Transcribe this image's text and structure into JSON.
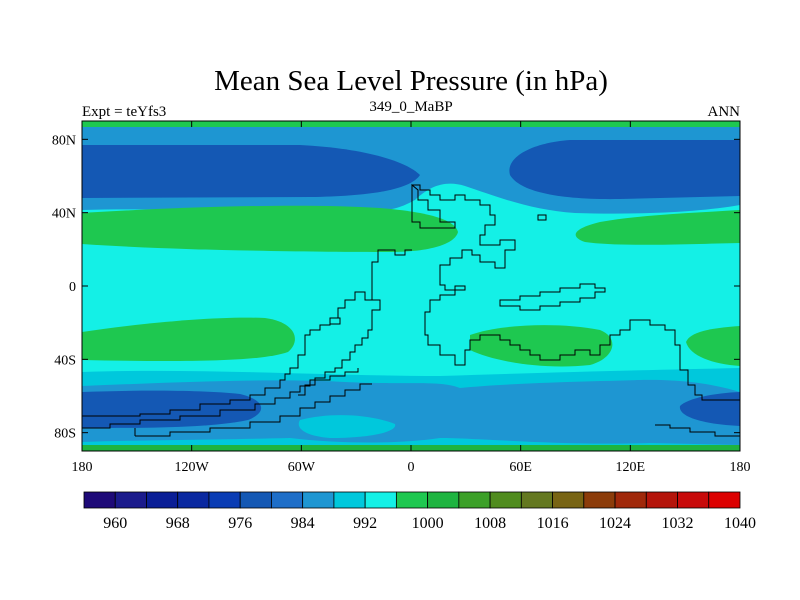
{
  "title": "Mean Sea Level Pressure (in hPa)",
  "left_label": "Expt = teYfs3",
  "center_label": "349_0_MaBP",
  "right_label": "ANN",
  "lat_ticks": [
    {
      "value": 80,
      "label": "80N"
    },
    {
      "value": 40,
      "label": "40N"
    },
    {
      "value": 0,
      "label": "0"
    },
    {
      "value": -40,
      "label": "40S"
    },
    {
      "value": -80,
      "label": "80S"
    }
  ],
  "lon_ticks": [
    {
      "value": -180,
      "label": "180"
    },
    {
      "value": -120,
      "label": "120W"
    },
    {
      "value": -60,
      "label": "60W"
    },
    {
      "value": 0,
      "label": "0"
    },
    {
      "value": 60,
      "label": "60E"
    },
    {
      "value": 120,
      "label": "120E"
    },
    {
      "value": 180,
      "label": "180"
    }
  ],
  "colorbar": {
    "colors": [
      "#1e0a78",
      "#1b1b8c",
      "#0a1e96",
      "#0a28a0",
      "#0a3cb4",
      "#1458b4",
      "#1e6ec8",
      "#1e96d2",
      "#00c8dc",
      "#14f0e6",
      "#1ec850",
      "#1eb440",
      "#3ca028",
      "#508c1e",
      "#647820",
      "#786414",
      "#8c3c0a",
      "#a0280a",
      "#b4140a",
      "#c80a0a",
      "#dc0000"
    ],
    "labels": [
      "960",
      "968",
      "976",
      "984",
      "992",
      "1000",
      "1008",
      "1016",
      "1024",
      "1032",
      "1040"
    ]
  },
  "field_colors": {
    "ocean_base": "#14f0e6",
    "low_deep": "#1458b4",
    "low_mid": "#1e96d2",
    "low_light": "#00c8dc",
    "high": "#1ec850",
    "coast": "#000000"
  },
  "map_region": {
    "lon_min": -180,
    "lon_max": 180,
    "lat_min": -90,
    "lat_max": 90
  }
}
